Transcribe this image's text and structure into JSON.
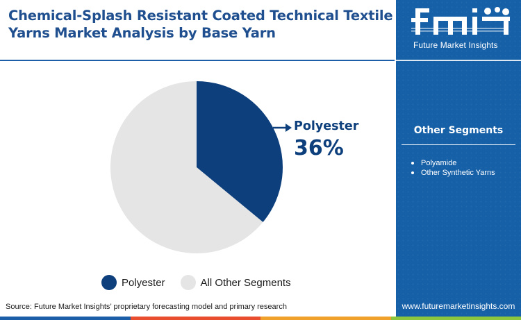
{
  "title": "Chemical-Splash Resistant Coated Technical Textile Yarns Market Analysis by Base Yarn",
  "colors": {
    "primary": "#0d3f7c",
    "other": "#e5e5e5",
    "sidebar": "#1660a8",
    "bar": [
      "#1d5ea8",
      "#e94f2e",
      "#f0a12b",
      "#8cc63f"
    ]
  },
  "chart_data": {
    "type": "pie",
    "slices": [
      {
        "label": "Polyester",
        "value": 36,
        "color": "#0d3f7c"
      },
      {
        "label": "All Other Segments",
        "value": 64,
        "color": "#e5e5e5"
      }
    ],
    "callout": {
      "label": "Polyester",
      "value_text": "36%"
    },
    "legend": [
      "Polyester",
      "All Other Segments"
    ],
    "legend_placement": "bottom"
  },
  "source": "Source: Future Market Insights’ proprietary forecasting model and primary research",
  "sidebar": {
    "logo_letters": "fmi",
    "logo_tagline": "Future Market Insights",
    "other_segments_title": "Other Segments",
    "other_segments": [
      "Polyamide",
      "Other Synthetic Yarns"
    ],
    "website": "www.futuremarketinsights.com"
  }
}
